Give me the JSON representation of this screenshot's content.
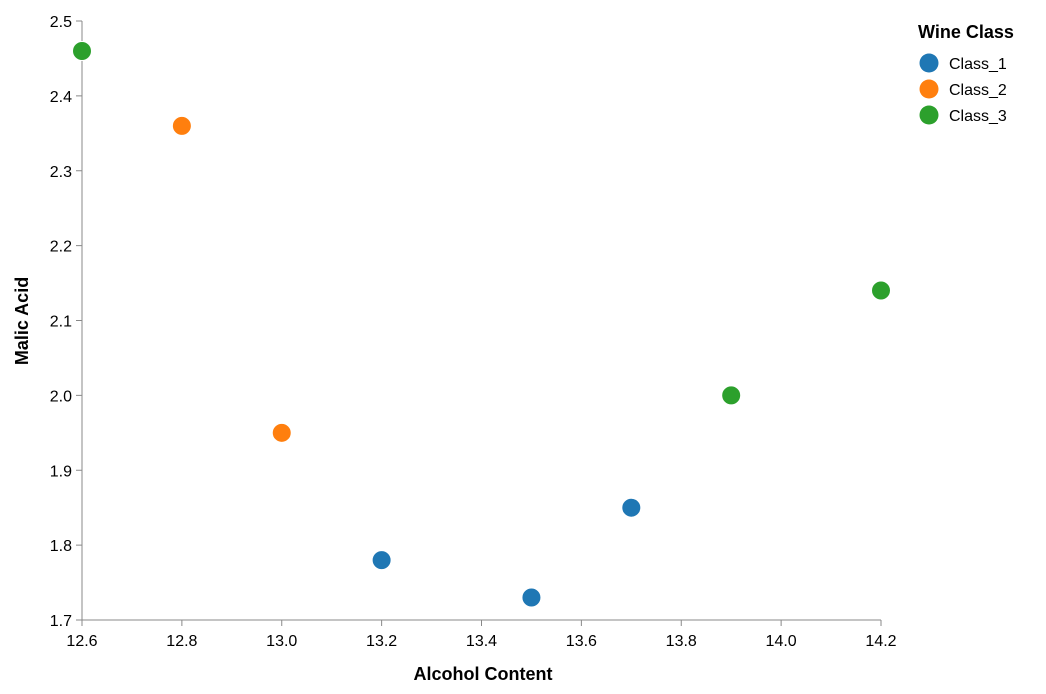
{
  "chart_data": {
    "type": "scatter",
    "xlabel": "Alcohol Content",
    "ylabel": "Malic Acid",
    "xlim": [
      12.6,
      14.2
    ],
    "ylim": [
      1.7,
      2.5
    ],
    "x_ticks": [
      "12.6",
      "12.8",
      "13.0",
      "13.2",
      "13.4",
      "13.6",
      "13.8",
      "14.0",
      "14.2"
    ],
    "y_ticks": [
      "1.7",
      "1.8",
      "1.9",
      "2.0",
      "2.1",
      "2.2",
      "2.3",
      "2.4",
      "2.5"
    ],
    "grid": false,
    "legend": {
      "title": "Wine Class",
      "placement": "top-right"
    },
    "series": [
      {
        "name": "Class_1",
        "color": "#1f77b4",
        "x": [
          13.2,
          13.5,
          13.7
        ],
        "y": [
          1.78,
          1.73,
          1.85
        ]
      },
      {
        "name": "Class_2",
        "color": "#ff7f0e",
        "x": [
          12.8,
          13.0
        ],
        "y": [
          2.36,
          1.95
        ]
      },
      {
        "name": "Class_3",
        "color": "#2ca02c",
        "x": [
          12.6,
          13.9,
          14.2
        ],
        "y": [
          2.46,
          2.0,
          2.14
        ]
      }
    ]
  }
}
